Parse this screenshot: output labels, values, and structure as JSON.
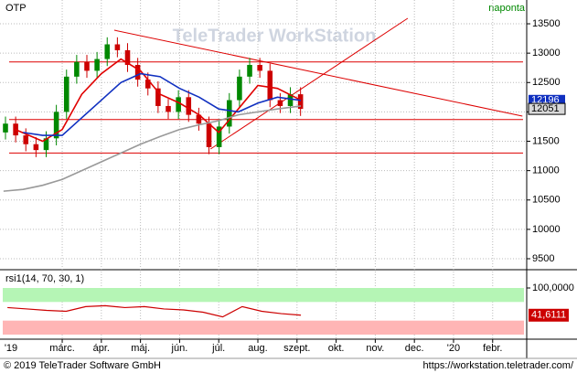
{
  "chart_data": [
    {
      "type": "candlestick",
      "title": "OTP",
      "subtitle": "naponta",
      "watermark": "TeleTrader WorkStation",
      "x": [
        0.55,
        0.81,
        1.07,
        1.33,
        1.59,
        1.85,
        2.11,
        2.37,
        2.63,
        2.89,
        3.15,
        3.41,
        3.67,
        3.93,
        4.19,
        4.45,
        4.71,
        4.97,
        5.23,
        5.49,
        5.75,
        6.01,
        6.27,
        6.53,
        6.79,
        7.05,
        7.31,
        7.57,
        7.83,
        8.09
      ],
      "open": [
        11650,
        11800,
        11600,
        11450,
        11350,
        11550,
        12000,
        12600,
        12850,
        12700,
        12900,
        13150,
        13050,
        12800,
        12550,
        12400,
        12100,
        12000,
        12250,
        11950,
        11800,
        11400,
        11750,
        12200,
        12600,
        12800,
        12700,
        12200,
        12100,
        12300
      ],
      "high": [
        11920,
        11920,
        11720,
        11570,
        11670,
        12120,
        12720,
        12970,
        12970,
        13020,
        13270,
        13270,
        13170,
        12920,
        12670,
        12520,
        12220,
        12370,
        12370,
        12070,
        11920,
        11870,
        12320,
        12720,
        12920,
        12920,
        12820,
        12320,
        12420,
        12420
      ],
      "low": [
        11530,
        11480,
        11330,
        11230,
        11230,
        11430,
        11880,
        12480,
        12580,
        12580,
        12780,
        12930,
        12680,
        12430,
        12280,
        11980,
        11880,
        11880,
        11830,
        11680,
        11280,
        11280,
        11630,
        12080,
        12480,
        12580,
        12080,
        11980,
        11980,
        11931
      ],
      "close": [
        11800,
        11600,
        11450,
        11350,
        11550,
        12000,
        12600,
        12850,
        12700,
        12900,
        13150,
        13050,
        12800,
        12550,
        12400,
        12100,
        12000,
        12250,
        11950,
        11800,
        11400,
        11750,
        12200,
        12600,
        12800,
        12700,
        12200,
        12100,
        12300,
        12051
      ],
      "up_color": "#008800",
      "down_color": "#cc0000",
      "overlays": [
        {
          "color": "#e00000",
          "x": [
            0.8,
            1.5,
            2.0,
            2.5,
            3.0,
            3.5,
            4.0,
            4.5,
            5.0,
            5.5,
            6.0,
            6.5,
            7.0,
            7.5,
            8.1
          ],
          "values": [
            11700,
            11500,
            11700,
            12300,
            12650,
            12900,
            12700,
            12300,
            12150,
            11950,
            11650,
            12050,
            12450,
            12400,
            12200
          ]
        },
        {
          "color": "#1030c0",
          "x": [
            1.0,
            1.5,
            2.0,
            2.5,
            3.0,
            3.5,
            4.0,
            4.5,
            5.0,
            5.5,
            6.0,
            6.5,
            7.0,
            7.5,
            8.1
          ],
          "values": [
            11650,
            11600,
            11600,
            11900,
            12200,
            12500,
            12650,
            12600,
            12400,
            12250,
            12050,
            12000,
            12150,
            12250,
            12196
          ]
        },
        {
          "color": "#999999",
          "x": [
            0.5,
            1.0,
            1.5,
            2.0,
            2.5,
            3.0,
            3.5,
            4.0,
            4.5,
            5.0,
            5.5,
            6.0,
            6.5,
            7.0,
            7.5,
            8.1
          ],
          "values": [
            10650,
            10680,
            10750,
            10850,
            11000,
            11150,
            11300,
            11450,
            11580,
            11700,
            11780,
            11850,
            11950,
            12000,
            12050,
            12100
          ]
        }
      ],
      "levels": {
        "color": "#dd0000",
        "values": [
          12850,
          11870,
          11300
        ]
      },
      "trendlines": [
        {
          "color": "#dd0000",
          "x": [
            3.33,
            13.76
          ],
          "values": [
            13391,
            11928
          ]
        },
        {
          "color": "#dd0000",
          "x": [
            5.79,
            10.83
          ],
          "values": [
            11368,
            13594
          ]
        }
      ],
      "xlim": [
        0.41,
        13.87
      ],
      "xticks": [
        {
          "value": 0,
          "label": "'19"
        },
        {
          "value": 2,
          "label": "márc."
        },
        {
          "value": 3,
          "label": "ápr."
        },
        {
          "value": 4,
          "label": "máj."
        },
        {
          "value": 5,
          "label": "jún."
        },
        {
          "value": 6,
          "label": "júl."
        },
        {
          "value": 7,
          "label": "aug."
        },
        {
          "value": 8,
          "label": "szept."
        },
        {
          "value": 9,
          "label": "okt."
        },
        {
          "value": 10,
          "label": "nov."
        },
        {
          "value": 11,
          "label": "dec."
        },
        {
          "value": 12,
          "label": "'20"
        },
        {
          "value": 13,
          "label": "febr."
        }
      ],
      "ylim": [
        9360,
        13905
      ],
      "yticks": [
        9500,
        10000,
        10500,
        11000,
        11500,
        12000,
        12500,
        13000,
        13500
      ],
      "grid": true
    },
    {
      "type": "line",
      "title": "rsi1(14, 70, 30, 1)",
      "color": "#cc0000",
      "x": [
        0.6,
        1.1,
        1.6,
        2.1,
        2.6,
        3.1,
        3.6,
        4.1,
        4.6,
        5.1,
        5.6,
        6.1,
        6.6,
        7.1,
        7.6,
        8.1
      ],
      "values": [
        58,
        55,
        52,
        50,
        60,
        62,
        58,
        60,
        55,
        53,
        48,
        38,
        60,
        50,
        45,
        41.6111
      ],
      "value_labels": [
        null,
        null,
        null,
        null,
        null,
        null,
        null,
        null,
        null,
        null,
        null,
        null,
        null,
        null,
        null,
        "41,6111"
      ],
      "bands": {
        "upper": 70,
        "lower": 30,
        "upper_color": "#b5f5b5",
        "lower_color": "#ffb5b5"
      },
      "xlim": [
        0.41,
        13.87
      ],
      "ylim": [
        0,
        100
      ],
      "yticks": [
        {
          "value": 100,
          "label": "100,0000"
        }
      ]
    }
  ],
  "footer": {
    "copyright": "© 2019 TeleTrader Software GmbH",
    "url": "https://workstation.teletrader.com/"
  }
}
